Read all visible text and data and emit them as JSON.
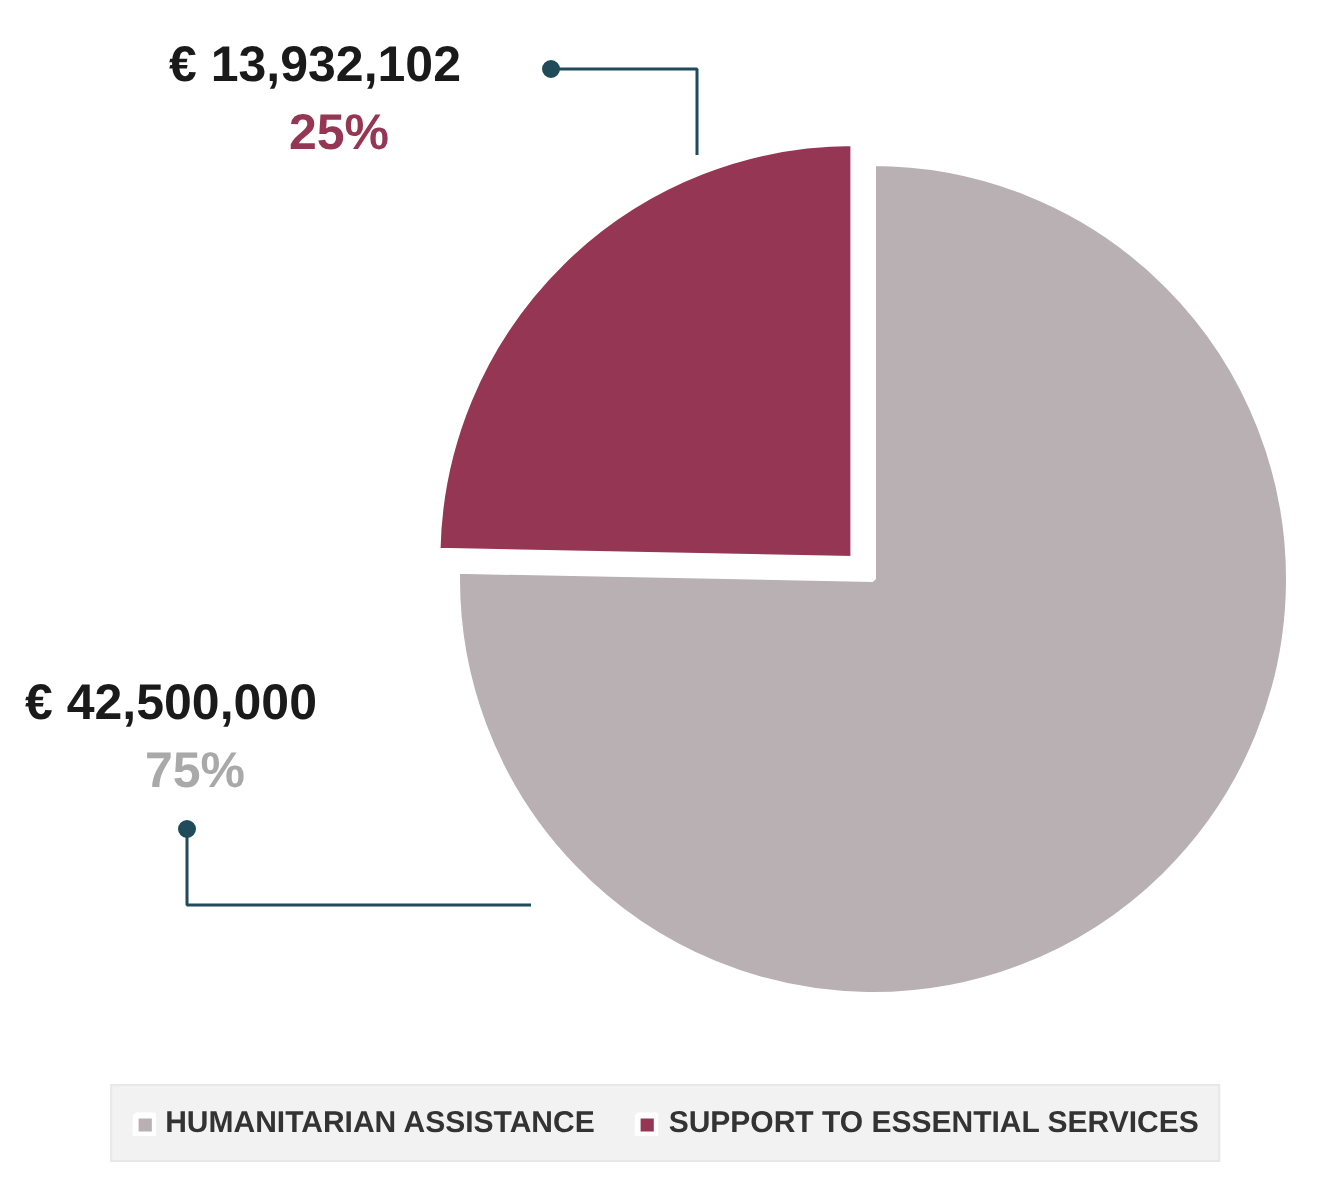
{
  "chart_data": {
    "type": "pie",
    "categories": [
      "HUMANITARIAN ASSISTANCE",
      "SUPPORT TO ESSENTIAL SERVICES"
    ],
    "values": [
      42500000,
      13932102
    ],
    "colors": [
      "#b8b0b3",
      "#953654"
    ],
    "value_labels": [
      "€ 42,500,000",
      "€ 13,932,102"
    ],
    "annotations": [
      "75%",
      "25%"
    ],
    "legend": "bottom"
  }
}
